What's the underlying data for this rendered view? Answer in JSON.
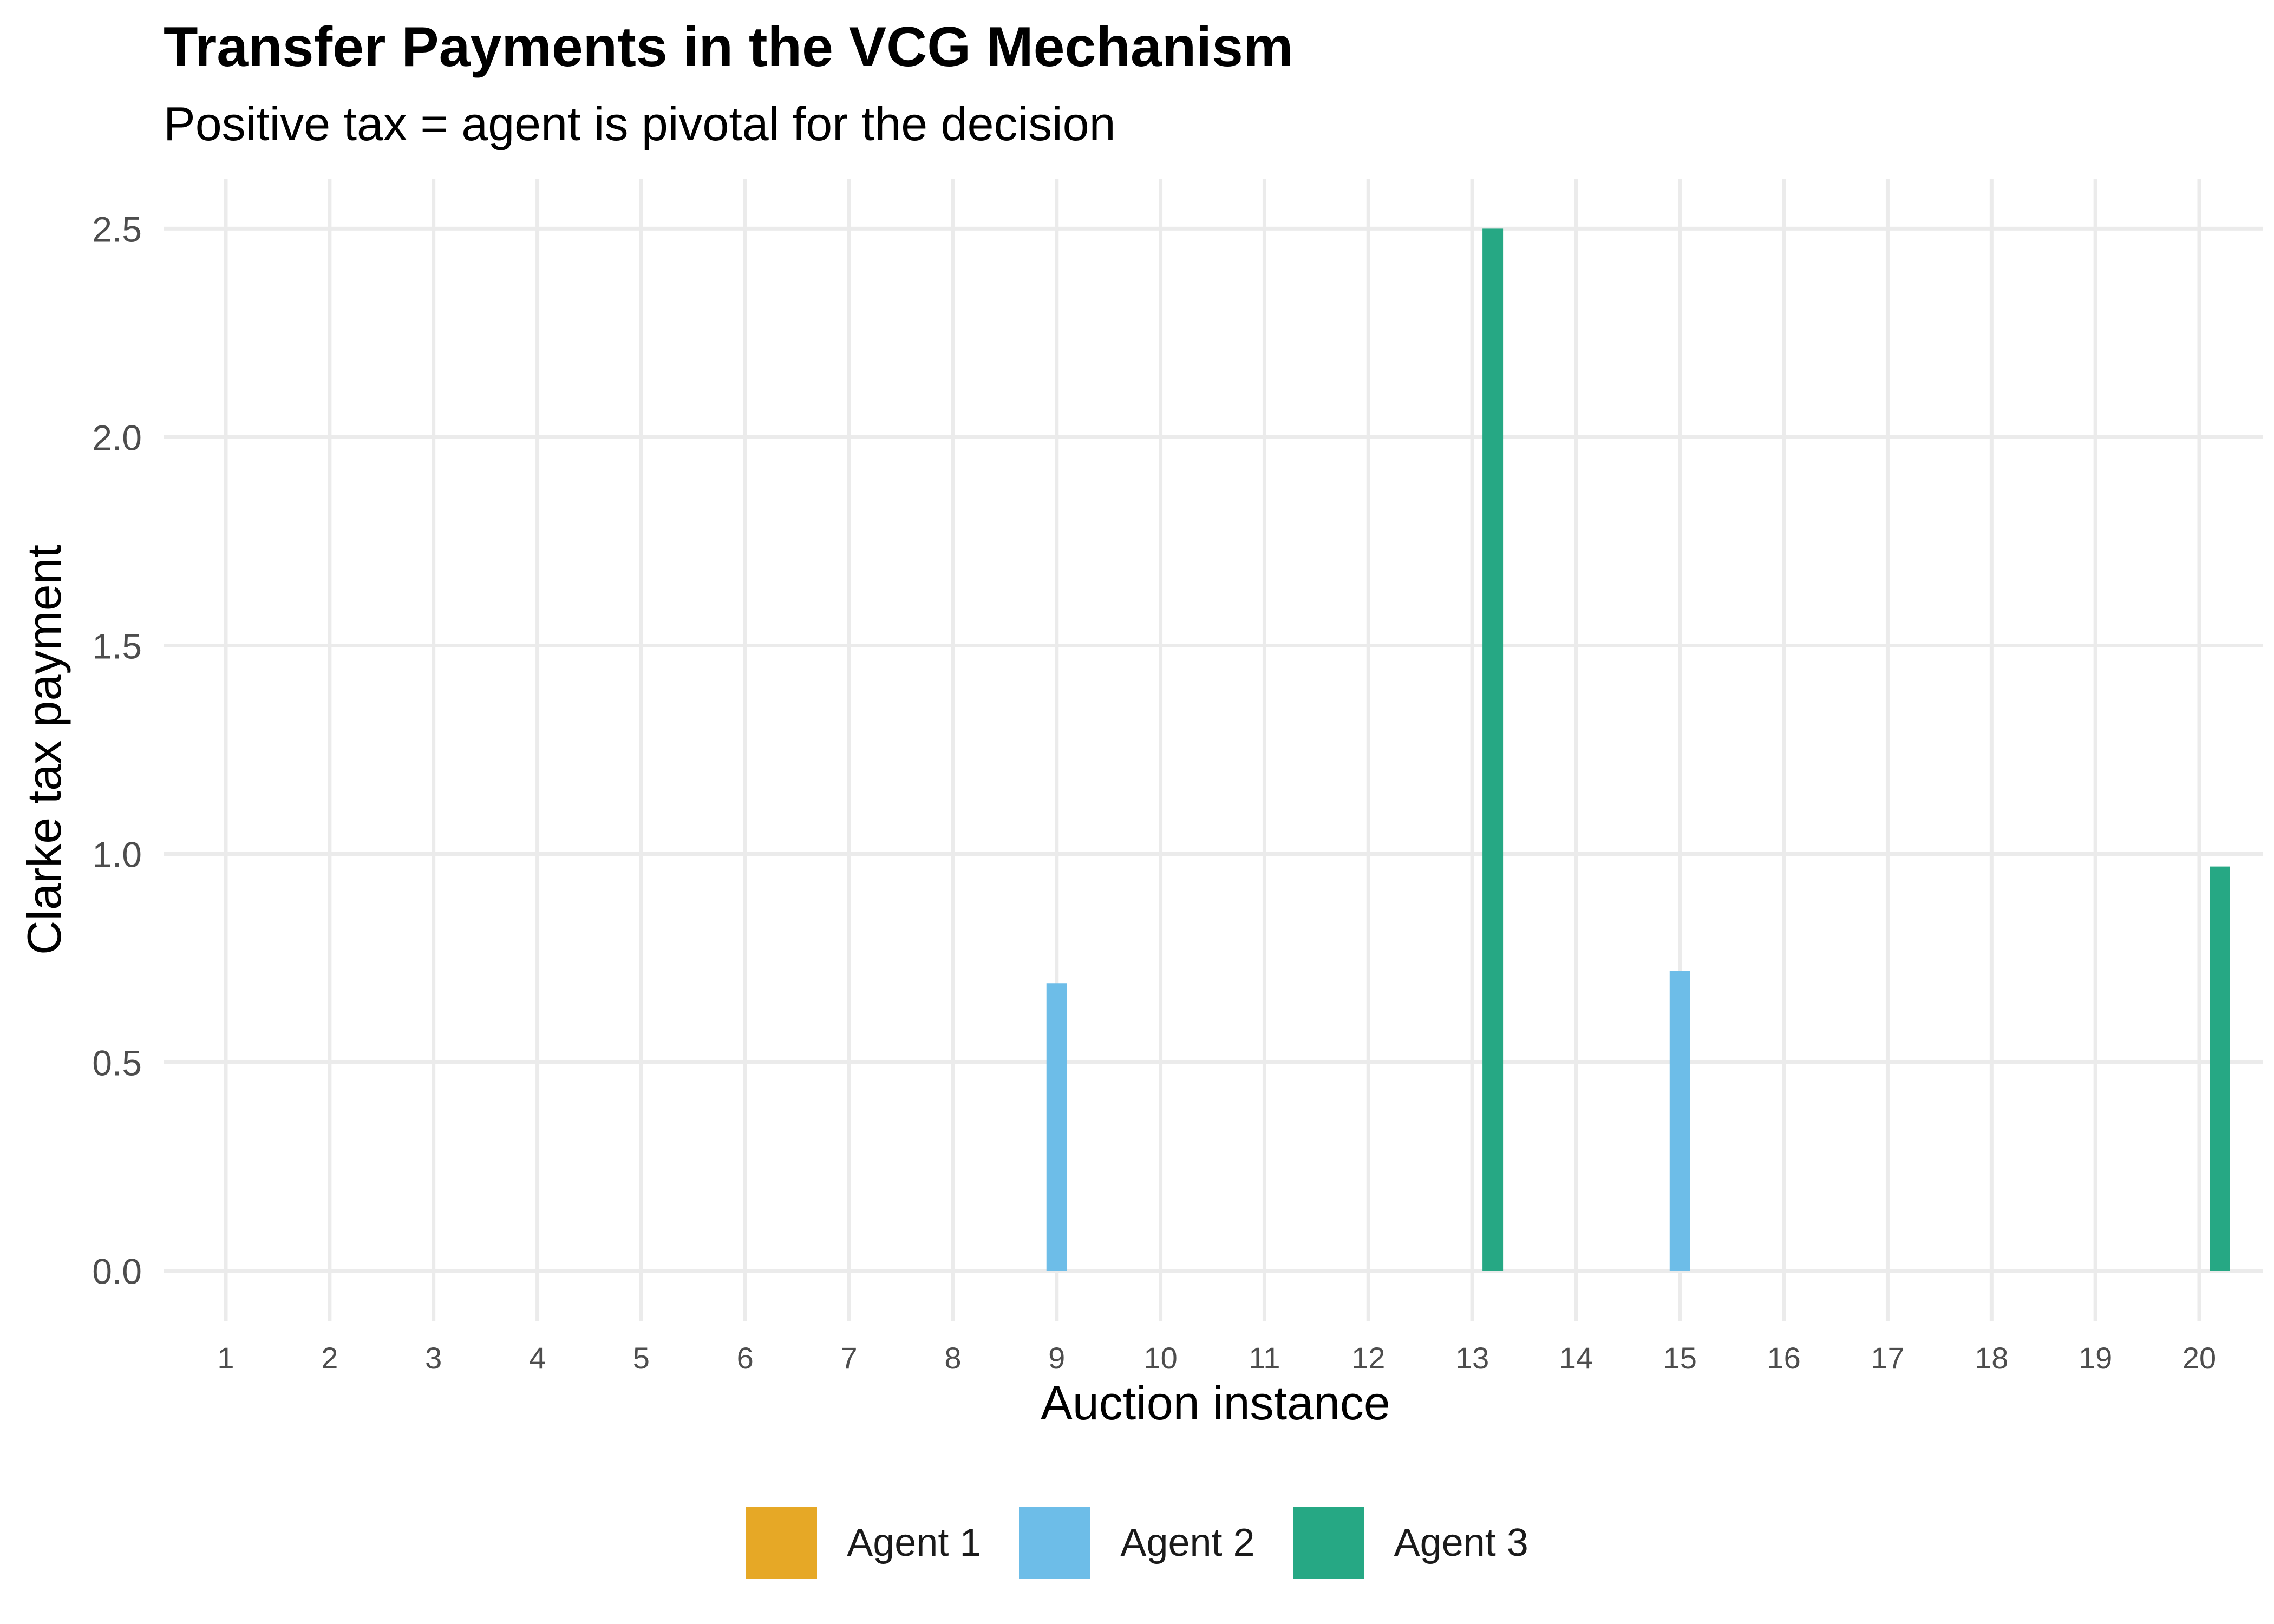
{
  "chart_data": {
    "type": "bar",
    "title": "Transfer Payments in the VCG Mechanism",
    "subtitle": "Positive tax = agent is pivotal for the decision",
    "xlabel": "Auction instance",
    "ylabel": "Clarke tax payment",
    "categories": [
      "1",
      "2",
      "3",
      "4",
      "5",
      "6",
      "7",
      "8",
      "9",
      "10",
      "11",
      "12",
      "13",
      "14",
      "15",
      "16",
      "17",
      "18",
      "19",
      "20"
    ],
    "ylim": [
      -0.12,
      2.62
    ],
    "yticks": [
      "0.0",
      "0.5",
      "1.0",
      "1.5",
      "2.0",
      "2.5"
    ],
    "grid": true,
    "legend_position": "bottom",
    "series": [
      {
        "name": "Agent 1",
        "color": "#E6A826",
        "values": [
          0,
          0,
          0,
          0,
          0,
          0,
          0,
          0,
          0,
          0,
          0,
          0,
          0,
          0,
          0,
          0,
          0,
          0,
          0,
          0
        ]
      },
      {
        "name": "Agent 2",
        "color": "#6DBDE8",
        "values": [
          0,
          0,
          0,
          0,
          0,
          0,
          0,
          0,
          0.69,
          0,
          0,
          0,
          0,
          0,
          0.72,
          0,
          0,
          0,
          0,
          0
        ]
      },
      {
        "name": "Agent 3",
        "color": "#26A884",
        "values": [
          0,
          0,
          0,
          0,
          0,
          0,
          0,
          0,
          0,
          0,
          0,
          0,
          2.5,
          0,
          0,
          0,
          0,
          0,
          0,
          0.97
        ]
      }
    ]
  }
}
